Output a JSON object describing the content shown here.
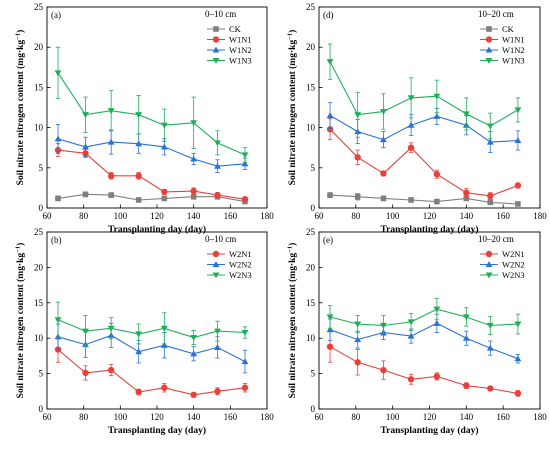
{
  "colors": {
    "CK": "#7f7f7f",
    "N1": "#e8413b",
    "N2": "#2a72d4",
    "N3": "#1fae58"
  },
  "chart_data": [
    {
      "type": "line",
      "panel": "(a)",
      "depth": "0–10 cm",
      "xlabel": "Transplanting day (day)",
      "ylabel": "Soil nitrate nitrogen content (mg·kg",
      "ylabel_sup": "−1",
      "ylabel_tail": ")",
      "xlim": [
        60,
        180
      ],
      "ylim": [
        0,
        25
      ],
      "xticks": [
        60,
        80,
        100,
        120,
        140,
        160,
        180
      ],
      "yticks": [
        0,
        5,
        10,
        15,
        20,
        25
      ],
      "legend": "top-right",
      "series": [
        {
          "name": "CK",
          "marker": "square",
          "color": "#7f7f7f",
          "x": [
            66,
            81,
            95,
            110,
            124,
            140,
            153,
            168
          ],
          "y": [
            1.2,
            1.7,
            1.6,
            1.0,
            1.2,
            1.4,
            1.4,
            0.8
          ],
          "err": [
            0.3,
            0.3,
            0.3,
            0.2,
            0.3,
            0.3,
            0.3,
            0.2
          ]
        },
        {
          "name": "W1N1",
          "marker": "circle",
          "color": "#e8413b",
          "x": [
            66,
            81,
            95,
            110,
            124,
            140,
            153,
            168
          ],
          "y": [
            7.2,
            6.8,
            4.0,
            4.0,
            2.0,
            2.1,
            1.6,
            1.1
          ],
          "err": [
            0.8,
            0.5,
            0.4,
            0.4,
            0.3,
            0.4,
            0.3,
            0.2
          ]
        },
        {
          "name": "W1N2",
          "marker": "triangle-up",
          "color": "#2a72d4",
          "x": [
            66,
            81,
            95,
            110,
            124,
            140,
            153,
            168
          ],
          "y": [
            8.6,
            7.6,
            8.2,
            8.0,
            7.6,
            6.1,
            5.2,
            5.5
          ],
          "err": [
            1.8,
            1.2,
            1.5,
            1.2,
            1.0,
            0.7,
            0.8,
            0.7
          ]
        },
        {
          "name": "W1N3",
          "marker": "triangle-down",
          "color": "#1fae58",
          "x": [
            66,
            81,
            95,
            110,
            124,
            140,
            153,
            168
          ],
          "y": [
            16.8,
            11.6,
            12.1,
            11.6,
            10.3,
            10.6,
            8.1,
            6.6
          ],
          "err": [
            3.2,
            2.2,
            2.5,
            2.4,
            2.0,
            3.2,
            1.5,
            0.9
          ]
        }
      ]
    },
    {
      "type": "line",
      "panel": "(d)",
      "depth": "10–20 cm",
      "xlabel": "Transplanting day (day)",
      "ylabel": "Soil nitrate nitrogen content (mg·kg",
      "ylabel_sup": "−1",
      "ylabel_tail": ")",
      "xlim": [
        60,
        180
      ],
      "ylim": [
        0,
        25
      ],
      "xticks": [
        60,
        80,
        100,
        120,
        140,
        160,
        180
      ],
      "yticks": [
        0,
        5,
        10,
        15,
        20,
        25
      ],
      "legend": "top-right",
      "series": [
        {
          "name": "CK",
          "marker": "square",
          "color": "#7f7f7f",
          "x": [
            66,
            81,
            95,
            110,
            124,
            140,
            153,
            168
          ],
          "y": [
            1.6,
            1.4,
            1.2,
            1.0,
            0.8,
            1.2,
            0.7,
            0.5
          ],
          "err": [
            0.3,
            0.4,
            0.3,
            0.2,
            0.2,
            0.3,
            0.2,
            0.2
          ]
        },
        {
          "name": "W1N1",
          "marker": "circle",
          "color": "#e8413b",
          "x": [
            66,
            81,
            95,
            110,
            124,
            140,
            153,
            168
          ],
          "y": [
            9.8,
            6.3,
            4.3,
            7.5,
            4.2,
            1.9,
            1.5,
            2.8
          ],
          "err": [
            1.3,
            0.9,
            0.3,
            0.6,
            0.5,
            0.5,
            0.4,
            0.3
          ]
        },
        {
          "name": "W1N2",
          "marker": "triangle-up",
          "color": "#2a72d4",
          "x": [
            66,
            81,
            95,
            110,
            124,
            140,
            153,
            168
          ],
          "y": [
            11.5,
            9.5,
            8.5,
            10.3,
            11.4,
            10.3,
            8.2,
            8.4
          ],
          "err": [
            1.6,
            1.5,
            1.0,
            1.3,
            1.0,
            1.2,
            1.3,
            1.2
          ]
        },
        {
          "name": "W1N3",
          "marker": "triangle-down",
          "color": "#1fae58",
          "x": [
            66,
            81,
            95,
            110,
            124,
            140,
            153,
            168
          ],
          "y": [
            18.2,
            11.6,
            12.0,
            13.7,
            13.9,
            11.7,
            10.2,
            12.2
          ],
          "err": [
            2.2,
            2.8,
            2.2,
            2.5,
            2.0,
            2.0,
            1.6,
            1.5
          ]
        }
      ]
    },
    {
      "type": "line",
      "panel": "(b)",
      "depth": "0–10 cm",
      "xlabel": "Transplanting day (day)",
      "ylabel": "Soil nitrate nitrogen content (mg·kg",
      "ylabel_sup": "−1",
      "ylabel_tail": ")",
      "xlim": [
        60,
        180
      ],
      "ylim": [
        0,
        25
      ],
      "xticks": [
        60,
        80,
        100,
        120,
        140,
        160,
        180
      ],
      "yticks": [
        0,
        5,
        10,
        15,
        20,
        25
      ],
      "legend": "top-right",
      "series": [
        {
          "name": "W2N1",
          "marker": "circle",
          "color": "#e8413b",
          "x": [
            66,
            81,
            95,
            110,
            124,
            140,
            153,
            168
          ],
          "y": [
            8.4,
            5.1,
            5.5,
            2.4,
            3.0,
            2.0,
            2.5,
            3.0
          ],
          "err": [
            1.8,
            1.0,
            0.8,
            0.4,
            0.6,
            0.3,
            0.5,
            0.6
          ]
        },
        {
          "name": "W2N2",
          "marker": "triangle-up",
          "color": "#2a72d4",
          "x": [
            66,
            81,
            95,
            110,
            124,
            140,
            153,
            168
          ],
          "y": [
            10.2,
            9.1,
            10.4,
            8.1,
            9.0,
            7.8,
            8.7,
            6.7
          ],
          "err": [
            1.8,
            1.8,
            1.7,
            1.6,
            1.8,
            1.0,
            1.5,
            1.6
          ]
        },
        {
          "name": "W2N3",
          "marker": "triangle-down",
          "color": "#1fae58",
          "x": [
            66,
            81,
            95,
            110,
            124,
            140,
            153,
            168
          ],
          "y": [
            12.6,
            11.0,
            11.4,
            10.6,
            11.4,
            10.1,
            11.0,
            10.8
          ],
          "err": [
            2.5,
            2.2,
            1.5,
            1.4,
            2.2,
            1.0,
            1.4,
            0.8
          ]
        }
      ]
    },
    {
      "type": "line",
      "panel": "(e)",
      "depth": "10–20 cm",
      "xlabel": "Transplanting day (day)",
      "ylabel": "Soil nitrate nitrogen content (mg·kg",
      "ylabel_sup": "−1",
      "ylabel_tail": ")",
      "xlim": [
        60,
        180
      ],
      "ylim": [
        0,
        25
      ],
      "xticks": [
        60,
        80,
        100,
        120,
        140,
        160,
        180
      ],
      "yticks": [
        0,
        5,
        10,
        15,
        20,
        25
      ],
      "legend": "top-right",
      "series": [
        {
          "name": "W2N1",
          "marker": "circle",
          "color": "#e8413b",
          "x": [
            66,
            81,
            95,
            110,
            124,
            140,
            153,
            168
          ],
          "y": [
            8.8,
            6.6,
            5.5,
            4.2,
            4.6,
            3.3,
            2.9,
            2.2
          ],
          "err": [
            2.2,
            1.8,
            1.3,
            0.7,
            0.5,
            0.4,
            0.3,
            0.4
          ]
        },
        {
          "name": "W2N2",
          "marker": "triangle-up",
          "color": "#2a72d4",
          "x": [
            66,
            81,
            95,
            110,
            124,
            140,
            153,
            168
          ],
          "y": [
            11.2,
            9.8,
            10.8,
            10.3,
            12.1,
            10.0,
            8.6,
            7.1
          ],
          "err": [
            1.5,
            1.2,
            1.0,
            1.0,
            1.3,
            1.0,
            1.0,
            0.6
          ]
        },
        {
          "name": "W2N3",
          "marker": "triangle-down",
          "color": "#1fae58",
          "x": [
            66,
            81,
            95,
            110,
            124,
            140,
            153,
            168
          ],
          "y": [
            13.0,
            12.0,
            11.8,
            12.3,
            14.1,
            13.0,
            11.8,
            12.0
          ],
          "err": [
            1.6,
            1.2,
            1.4,
            1.2,
            1.5,
            1.3,
            1.3,
            1.4
          ]
        }
      ]
    }
  ]
}
